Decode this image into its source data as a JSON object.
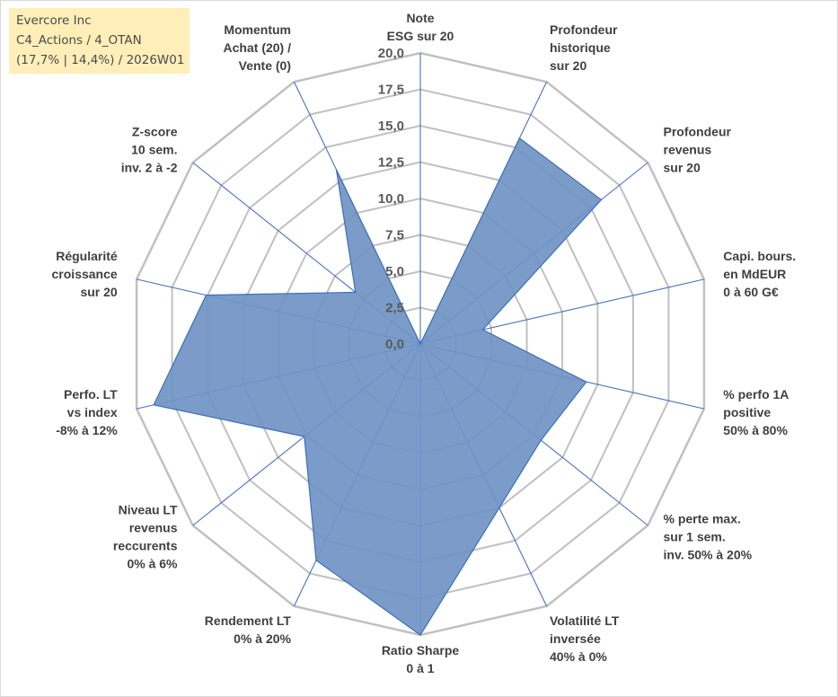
{
  "info": {
    "line1": "Evercore Inc",
    "line2": "C4_Actions / 4_OTAN",
    "line3": "(17,7% | 14,4%) / 2026W01"
  },
  "colors": {
    "fill": "#7094c4",
    "stroke": "#3f6fb5",
    "grid": "#c0c0c0",
    "spoke": "#4472c4"
  },
  "chart_data": {
    "type": "radar",
    "rlim": [
      0,
      20
    ],
    "rticks": [
      "0,0",
      "2,5",
      "5,0",
      "7,5",
      "10,0",
      "12,5",
      "15,0",
      "17,5",
      "20,0"
    ],
    "categories": [
      [
        "Note",
        "ESG sur 20"
      ],
      [
        "Profondeur",
        "historique",
        "sur 20"
      ],
      [
        "Profondeur",
        "revenus",
        "sur 20"
      ],
      [
        "Capi. bours.",
        "en MdEUR",
        "0 à 60 G€"
      ],
      [
        "% perfo 1A",
        "positive",
        "50% à 80%"
      ],
      [
        "% perte max.",
        "sur 1 sem.",
        "inv. 50% à 20%"
      ],
      [
        "Volatilité LT",
        "inversée",
        "40% à 0%"
      ],
      [
        "Ratio Sharpe",
        "0 à 1"
      ],
      [
        "Rendement LT",
        "0% à 20%"
      ],
      [
        "Niveau LT",
        "revenus",
        "reccurents",
        "0% à 6%"
      ],
      [
        "Perfo. LT",
        "vs index",
        "-8% à 12%"
      ],
      [
        "Régularité",
        "croissance",
        "sur 20"
      ],
      [
        "Z-score",
        "10 sem.",
        "inv. 2 à -2"
      ],
      [
        "Momentum",
        "Achat (20) /",
        "Vente (0)"
      ]
    ],
    "series": [
      {
        "name": "Evercore Inc",
        "values": [
          0,
          15.7,
          15.9,
          4.4,
          11.7,
          10.6,
          12.5,
          20,
          16.5,
          10.2,
          18.8,
          15.1,
          5.7,
          13.3
        ]
      }
    ]
  }
}
